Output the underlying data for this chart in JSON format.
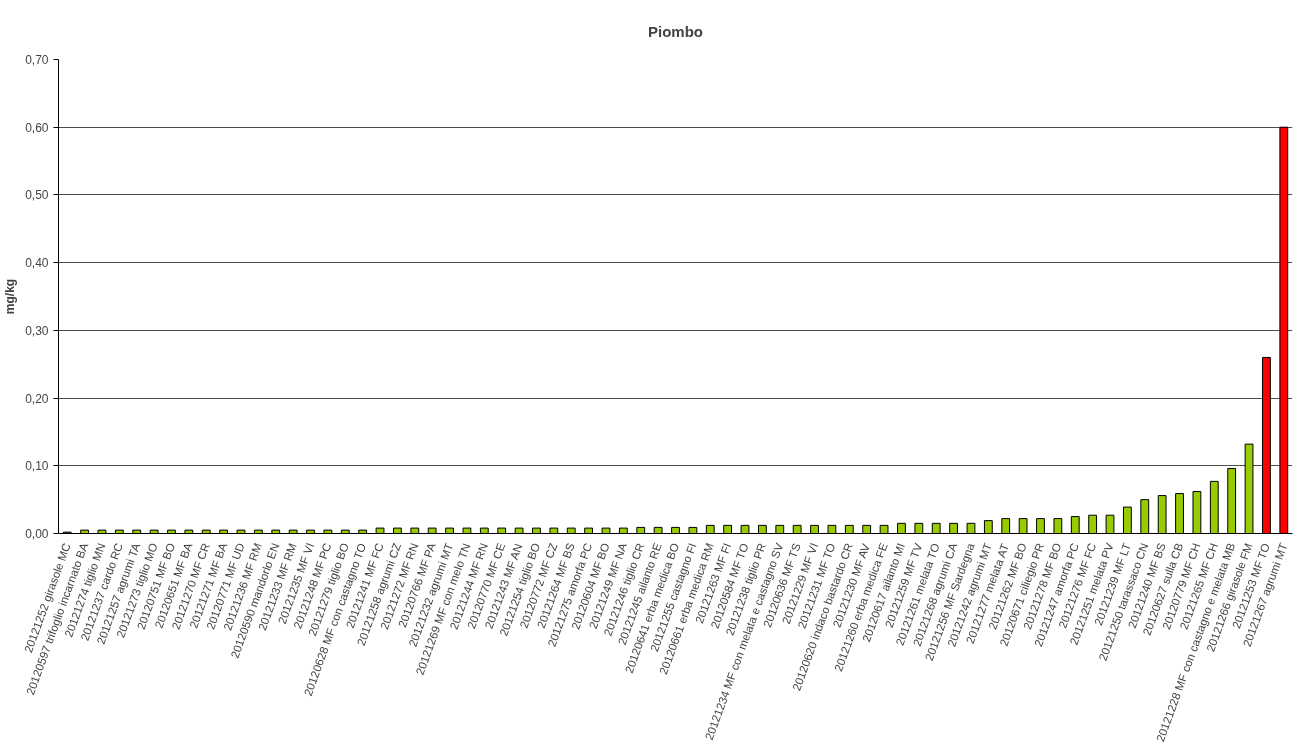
{
  "chart_data": {
    "type": "bar",
    "title": "Piombo",
    "ylabel": "mg/kg",
    "categories": [
      "20121252 girasole MC",
      "20120597 trifoglio incarnato BA",
      "20121274 tiglio MN",
      "20121237 cardo RC",
      "20121257 agrumi TA",
      "20121273 tiglio MO",
      "20120751 MF BO",
      "20120651 MF BA",
      "20121270 MF CR",
      "20121271 MF BA",
      "20120771 MF UD",
      "20121236 MF RM",
      "20120590 mandorlo EN",
      "20121233 MF RM",
      "20121235 MF VI",
      "20121248 MF PC",
      "20121279 tiglio BO",
      "20120628 MF con castagno TO",
      "20121241 MF FC",
      "20121258 agrumi CZ",
      "20121272 MF RN",
      "20120766 MF PA",
      "20121232 agrumi MT",
      "20121269 MF con melo TN",
      "20121244 MF RN",
      "20120770 MF CE",
      "20121243 MF AN",
      "20121254 tiglio BO",
      "20120772 MF CZ",
      "20121264 MF BS",
      "20121275 amorfa PC",
      "20120604 MF BO",
      "20121249 MF NA",
      "20121246 tiglio CR",
      "20121245 ailanto RE",
      "20120641 erba medica BO",
      "20121255 castagno FI",
      "20120661 erba medica RM",
      "20121263 MF FI",
      "20120584 MF TO",
      "20121238 tiglio PR",
      "20121234 MF con melata e castagno SV",
      "20120636 MF TS",
      "20121229 MF VI",
      "20121231 MF TO",
      "20120620 indaco bastardo CR",
      "20121230 MF AV",
      "20121260 erba medica FE",
      "20120617 ailanto MI",
      "20121259 MF TV",
      "20121261 melata TO",
      "20121268 agrumi CA",
      "20121256 MF Sardegna",
      "20121242 agrumi MT",
      "20121277 melata AT",
      "20121262 MF BO",
      "20120671 ciliegio PR",
      "20121278 MF BO",
      "20121247 amorfa PC",
      "20121276 MF FC",
      "20121251 melata PV",
      "20121239 MF LT",
      "20121250 tarassaco CN",
      "20121240 MF BS",
      "20120627 sulla CB",
      "20120779 MF CH",
      "20121265 MF CH",
      "20121228 MF con castagno e melata MB",
      "20121266 girasole FM",
      "20121253 MF TO",
      "20121267 agrumi MT"
    ],
    "values": [
      0.002,
      0.005,
      0.005,
      0.005,
      0.005,
      0.005,
      0.005,
      0.005,
      0.005,
      0.005,
      0.005,
      0.005,
      0.005,
      0.005,
      0.005,
      0.005,
      0.005,
      0.005,
      0.008,
      0.008,
      0.008,
      0.008,
      0.008,
      0.008,
      0.008,
      0.008,
      0.008,
      0.008,
      0.008,
      0.008,
      0.008,
      0.008,
      0.008,
      0.009,
      0.009,
      0.009,
      0.009,
      0.012,
      0.012,
      0.012,
      0.012,
      0.012,
      0.012,
      0.012,
      0.012,
      0.012,
      0.012,
      0.012,
      0.015,
      0.015,
      0.015,
      0.015,
      0.015,
      0.019,
      0.022,
      0.022,
      0.022,
      0.022,
      0.025,
      0.027,
      0.027,
      0.039,
      0.05,
      0.056,
      0.059,
      0.062,
      0.077,
      0.096,
      0.132,
      0.26,
      0.6
    ],
    "colors": [
      "#333333",
      "#99cc00",
      "#99cc00",
      "#99cc00",
      "#99cc00",
      "#99cc00",
      "#99cc00",
      "#99cc00",
      "#99cc00",
      "#99cc00",
      "#99cc00",
      "#99cc00",
      "#99cc00",
      "#99cc00",
      "#99cc00",
      "#99cc00",
      "#99cc00",
      "#99cc00",
      "#99cc00",
      "#99cc00",
      "#99cc00",
      "#99cc00",
      "#99cc00",
      "#99cc00",
      "#99cc00",
      "#99cc00",
      "#99cc00",
      "#99cc00",
      "#99cc00",
      "#99cc00",
      "#99cc00",
      "#99cc00",
      "#99cc00",
      "#99cc00",
      "#99cc00",
      "#99cc00",
      "#99cc00",
      "#99cc00",
      "#99cc00",
      "#99cc00",
      "#99cc00",
      "#99cc00",
      "#99cc00",
      "#99cc00",
      "#99cc00",
      "#99cc00",
      "#99cc00",
      "#99cc00",
      "#99cc00",
      "#99cc00",
      "#99cc00",
      "#99cc00",
      "#99cc00",
      "#99cc00",
      "#99cc00",
      "#99cc00",
      "#99cc00",
      "#99cc00",
      "#99cc00",
      "#99cc00",
      "#99cc00",
      "#99cc00",
      "#99cc00",
      "#99cc00",
      "#99cc00",
      "#99cc00",
      "#99cc00",
      "#99cc00",
      "#99cc00",
      "#ff0000",
      "#ff0000"
    ],
    "ylim": [
      0,
      0.7
    ],
    "yticks": [
      {
        "value": 0,
        "label": "0,00"
      },
      {
        "value": 0.1,
        "label": "0,10"
      },
      {
        "value": 0.2,
        "label": "0,20"
      },
      {
        "value": 0.3,
        "label": "0,30"
      },
      {
        "value": 0.4,
        "label": "0,40"
      },
      {
        "value": 0.5,
        "label": "0,50"
      },
      {
        "value": 0.6,
        "label": "0,60"
      },
      {
        "value": 0.7,
        "label": "0,70"
      }
    ],
    "grid": "y"
  }
}
